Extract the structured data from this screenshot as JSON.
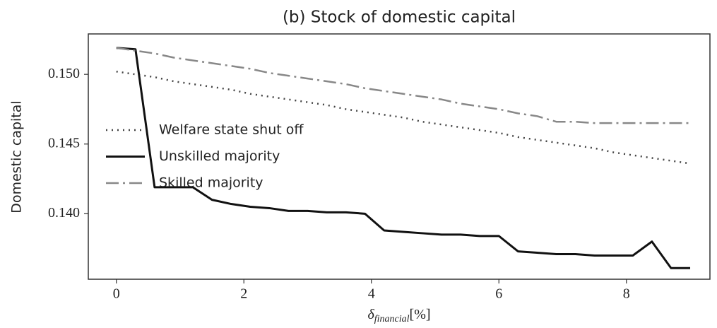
{
  "chart_data": {
    "type": "line",
    "title": "(b) Stock of domestic capital",
    "y_label": "Domestic capital",
    "x_label": {
      "symbol": "δ",
      "subscript": "financial",
      "suffix": "[%]"
    },
    "x": [
      0,
      0.3,
      0.6,
      0.9,
      1.2,
      1.5,
      1.8,
      2.1,
      2.4,
      2.7,
      3.0,
      3.3,
      3.6,
      3.9,
      4.2,
      4.5,
      4.8,
      5.1,
      5.4,
      5.7,
      6.0,
      6.3,
      6.6,
      6.9,
      7.2,
      7.5,
      7.8,
      8.1,
      8.4,
      8.7,
      9.0
    ],
    "series": [
      {
        "name": "Welfare state shut off",
        "color": "#444444",
        "dash": "dotted",
        "values": [
          0.1502,
          0.15,
          0.1498,
          0.1495,
          0.1493,
          0.1491,
          0.1489,
          0.1486,
          0.1484,
          0.1482,
          0.148,
          0.1478,
          0.1475,
          0.1473,
          0.1471,
          0.1469,
          0.1466,
          0.1464,
          0.1462,
          0.146,
          0.1458,
          0.1455,
          0.1453,
          0.1451,
          0.1449,
          0.1447,
          0.1444,
          0.1442,
          0.144,
          0.1438,
          0.1436
        ]
      },
      {
        "name": "Unskilled majority",
        "color": "#111111",
        "dash": "solid",
        "values": [
          0.1519,
          0.1518,
          0.1419,
          0.1419,
          0.1419,
          0.141,
          0.1407,
          0.1405,
          0.1404,
          0.1402,
          0.1402,
          0.1401,
          0.1401,
          0.14,
          0.1388,
          0.1387,
          0.1386,
          0.1385,
          0.1385,
          0.1384,
          0.1384,
          0.1373,
          0.1372,
          0.1371,
          0.1371,
          0.137,
          0.137,
          0.137,
          0.138,
          0.1361,
          0.1361
        ]
      },
      {
        "name": "Skilled majority",
        "color": "#888888",
        "dash": "dashdot",
        "values": [
          0.1519,
          0.1517,
          0.1515,
          0.1512,
          0.151,
          0.1508,
          0.1506,
          0.1504,
          0.1501,
          0.1499,
          0.1497,
          0.1495,
          0.1493,
          0.149,
          0.1488,
          0.1486,
          0.1484,
          0.1482,
          0.1479,
          0.1477,
          0.1475,
          0.1472,
          0.147,
          0.1466,
          0.1466,
          0.1465,
          0.1465,
          0.1465,
          0.1465,
          0.1465,
          0.1465
        ]
      }
    ],
    "xlim": [
      -0.44,
      9.31
    ],
    "xticks": [
      0,
      2,
      4,
      6,
      8
    ],
    "ylim": [
      0.1353,
      0.1529
    ],
    "yticks": [
      {
        "value": 0.14,
        "label": "0.140"
      },
      {
        "value": 0.145,
        "label": "0.145"
      },
      {
        "value": 0.15,
        "label": "0.150"
      }
    ],
    "grid": false,
    "legend": "left"
  }
}
